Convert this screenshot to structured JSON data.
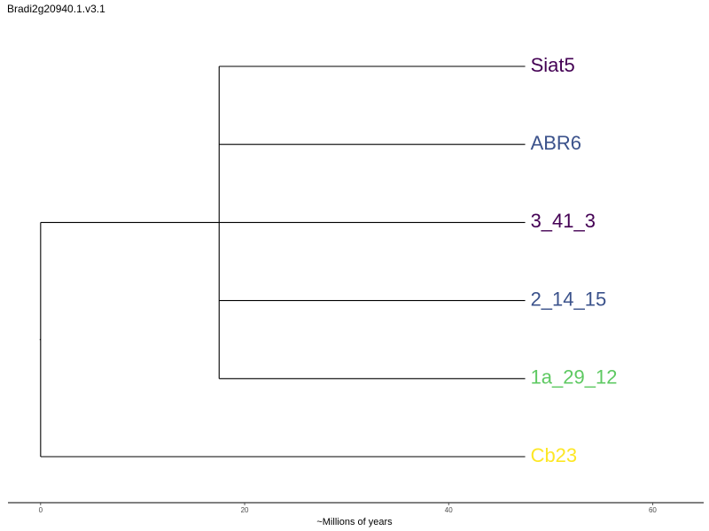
{
  "title": "Bradi2g20940.1.v3.1",
  "axis": {
    "label": "~Millions of years",
    "ticks": [
      0,
      20,
      40,
      60
    ],
    "range": [
      -3.2,
      65
    ]
  },
  "tree": {
    "root_x": 0,
    "internal_nodes": [
      {
        "id": "root",
        "x": 0,
        "children": [
          "clade",
          "Cb23"
        ]
      },
      {
        "id": "clade",
        "x": 17.5,
        "children": [
          "Siat5",
          "ABR6",
          "3_41_3",
          "2_14_15",
          "1a_29_12"
        ]
      }
    ],
    "tips": [
      {
        "name": "Siat5",
        "x": 47.5,
        "color": "#440154"
      },
      {
        "name": "ABR6",
        "x": 47.5,
        "color": "#3b528b"
      },
      {
        "name": "3_41_3",
        "x": 47.5,
        "color": "#440154"
      },
      {
        "name": "2_14_15",
        "x": 47.5,
        "color": "#3b528b"
      },
      {
        "name": "1a_29_12",
        "x": 47.5,
        "color": "#5ec962"
      },
      {
        "name": "Cb23",
        "x": 47.5,
        "color": "#fde725"
      }
    ]
  }
}
